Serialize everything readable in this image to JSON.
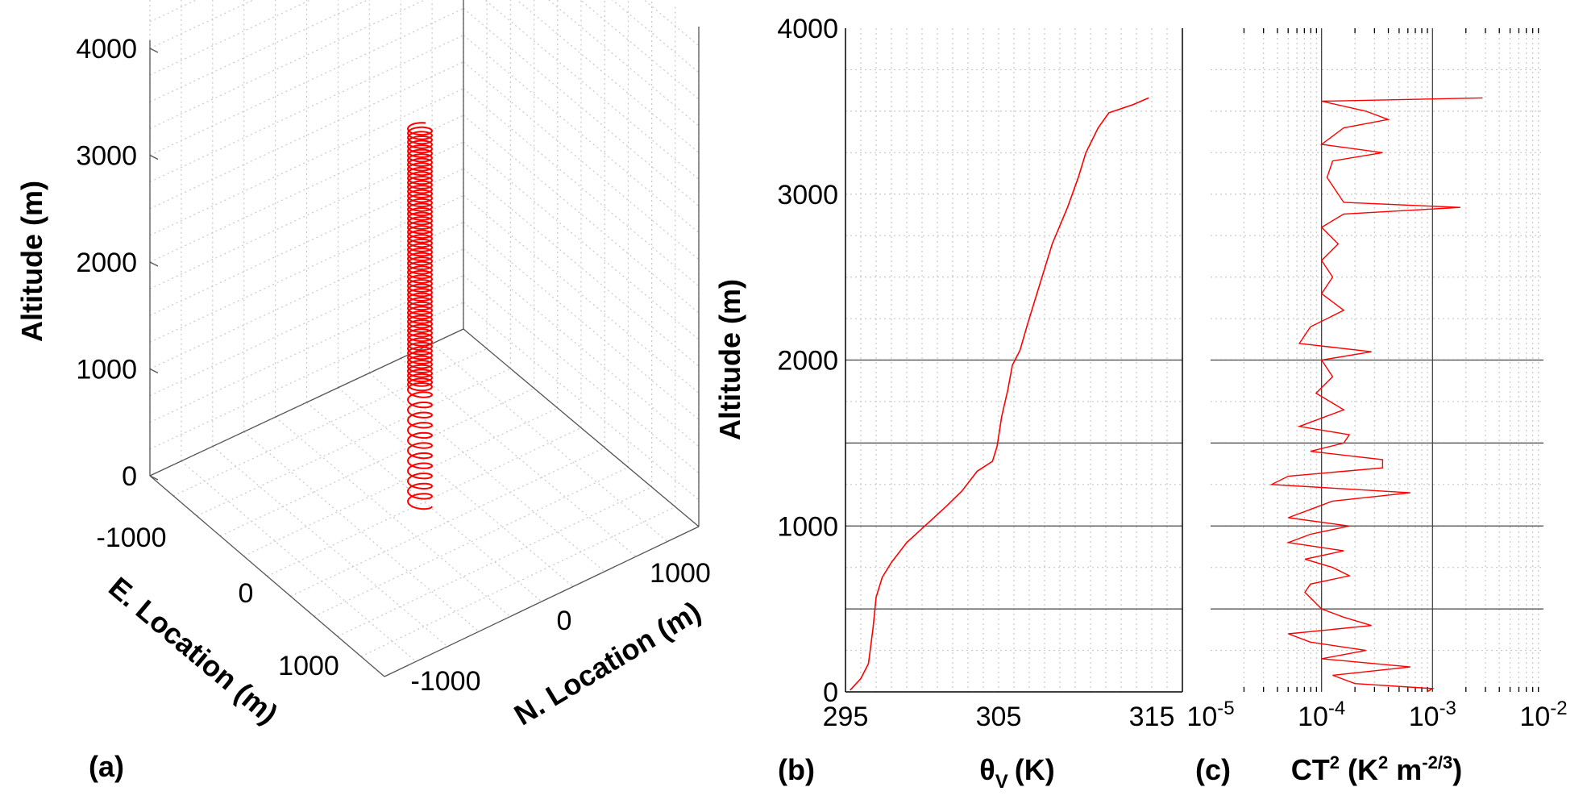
{
  "chart_data": [
    {
      "panel": "(a)",
      "type": "line-3d",
      "xlabel": "E. Location (m)",
      "ylabel": "N. Location (m)",
      "zlabel": "Altitude (m)",
      "x_ticks": [
        "-1000",
        "0",
        "1000"
      ],
      "y_ticks": [
        "-1000",
        "0",
        "1000"
      ],
      "z_ticks": [
        "0",
        "1000",
        "2000",
        "3000",
        "4000"
      ],
      "zlim": [
        0,
        4000
      ],
      "grid": true,
      "line_color": "#ff0000",
      "trajectory": {
        "shape": "helix",
        "center_e": 0,
        "center_n": 0,
        "alt_min": 0,
        "alt_max": 3550
      }
    },
    {
      "panel": "(b)",
      "type": "line",
      "xlabel": "θ",
      "xlabel_sub": "V",
      "xlabel_unit": "(K)",
      "ylabel": "Altitude (m)",
      "xlim": [
        295,
        317
      ],
      "ylim": [
        0,
        4000
      ],
      "x_ticks": [
        "295",
        "305",
        "315"
      ],
      "y_ticks": [
        "0",
        "1000",
        "2000",
        "3000",
        "4000"
      ],
      "reference_lines": [
        500,
        1000,
        1500,
        2000
      ],
      "grid": true,
      "line_color": "#ff0000",
      "x": [
        295.3,
        296.0,
        296.5,
        296.8,
        297.0,
        297.4,
        298.0,
        299.0,
        300.3,
        301.6,
        302.6,
        303.6,
        304.6,
        304.9,
        305.2,
        305.6,
        305.9,
        306.4,
        306.9,
        307.9,
        308.5,
        309.5,
        310.2,
        310.7,
        311.5,
        312.2,
        313.8,
        314.8
      ],
      "y": [
        10,
        80,
        170,
        385,
        570,
        690,
        780,
        900,
        1010,
        1120,
        1210,
        1330,
        1390,
        1480,
        1660,
        1820,
        1970,
        2060,
        2220,
        2520,
        2700,
        2920,
        3100,
        3250,
        3400,
        3490,
        3540,
        3580
      ]
    },
    {
      "panel": "(c)",
      "type": "line",
      "xlabel": "CT",
      "xlabel_sup": "2",
      "xlabel_unit_a": " (K",
      "xlabel_unit_sup1": "2",
      "xlabel_unit_b": " m",
      "xlabel_unit_sup2": "-2/3",
      "xlabel_unit_c": ")",
      "xscale": "log",
      "xlim": [
        1e-05,
        0.01
      ],
      "ylim": [
        0,
        4000
      ],
      "x_ticks": [
        {
          "base": "10",
          "exp": "-5"
        },
        {
          "base": "10",
          "exp": "-4"
        },
        {
          "base": "10",
          "exp": "-3"
        },
        {
          "base": "10",
          "exp": "-2"
        }
      ],
      "reference_lines": [
        500,
        1000,
        1500,
        2000
      ],
      "vertical_reference_lines": [
        0.0001,
        0.001
      ],
      "grid": true,
      "line_color": "#ff0000",
      "log10_x": [
        -3.05,
        -3.0,
        -3.7,
        -3.9,
        -3.2,
        -4.0,
        -3.6,
        -4.1,
        -4.3,
        -3.55,
        -3.8,
        -4.0,
        -4.15,
        -4.1,
        -3.75,
        -3.9,
        -4.15,
        -3.8,
        -4.3,
        -4.1,
        -3.75,
        -4.3,
        -4.1,
        -3.9,
        -3.2,
        -4.45,
        -4.3,
        -3.45,
        -3.45,
        -4.1,
        -3.8,
        -3.75,
        -4.2,
        -3.8,
        -4.05,
        -3.9,
        -4.0,
        -3.55,
        -4.2,
        -4.1,
        -3.8,
        -4.0,
        -3.9,
        -4.0,
        -3.85,
        -4.0,
        -3.8,
        -2.75,
        -3.8,
        -3.95,
        -3.9,
        -3.45,
        -4.0,
        -3.8,
        -3.4,
        -3.6,
        -4.0,
        -2.55
      ],
      "y": [
        0,
        20,
        50,
        100,
        150,
        200,
        250,
        300,
        350,
        400,
        450,
        500,
        600,
        650,
        700,
        750,
        800,
        850,
        900,
        950,
        1000,
        1050,
        1100,
        1150,
        1200,
        1250,
        1300,
        1350,
        1400,
        1450,
        1500,
        1550,
        1600,
        1700,
        1800,
        1900,
        2000,
        2050,
        2100,
        2200,
        2300,
        2400,
        2500,
        2600,
        2700,
        2800,
        2880,
        2920,
        2950,
        3100,
        3200,
        3250,
        3300,
        3400,
        3450,
        3500,
        3560,
        3580
      ]
    }
  ]
}
